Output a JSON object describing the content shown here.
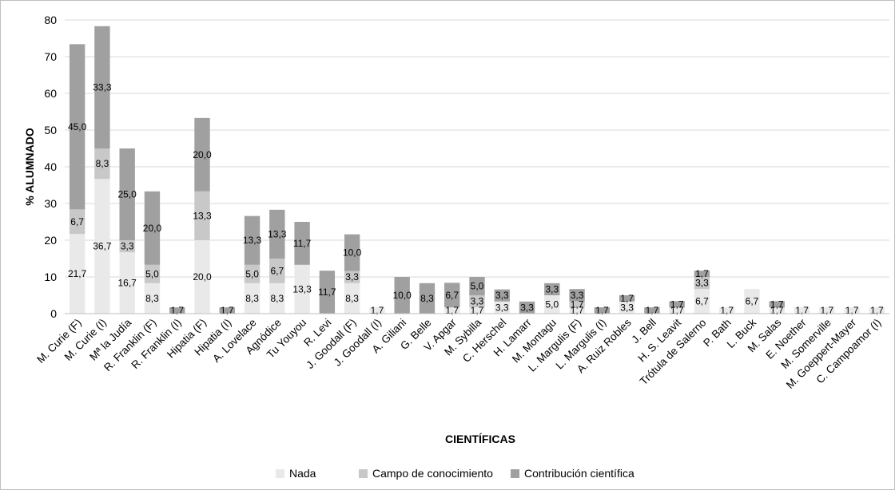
{
  "chart_data": {
    "type": "bar",
    "stacked": true,
    "xlabel": "CIENTÍFICAS",
    "ylabel": "% ALUMNADO",
    "ylim": [
      0,
      80
    ],
    "yticks": [
      0,
      10,
      20,
      30,
      40,
      50,
      60,
      70,
      80
    ],
    "grid": true,
    "legend_position": "bottom",
    "categories": [
      "M. Curie (F)",
      "M. Curie (I)",
      "Mª la Judía",
      "R. Franklin (F)",
      "R. Franklin (I)",
      "Hipatia (F)",
      "Hipatia (I)",
      "A. Lovelace",
      "Agnódice",
      "Tu Youyou",
      "R. Levi",
      "J. Goodall (F)",
      "J. Goodall (I)",
      "A. Giliani",
      "G. Belle",
      "V. Apgar",
      "M. Sybilla",
      "C. Herschel",
      "H. Lamarr",
      "M. Montagu",
      "L. Margulis (F)",
      "L. Margulis (I)",
      "A. Ruiz Robles",
      "J. Bell",
      "H. S. Leavit",
      "Trótula de Salerno",
      "P. Bath",
      "L. Buck",
      "M. Salas",
      "E. Noether",
      "M. Somerville",
      "M. Goeppert-Mayer",
      "C. Campoamor (I)"
    ],
    "series": [
      {
        "name": "Nada",
        "color": "#e9e9e9",
        "values": [
          21.7,
          36.7,
          16.7,
          8.3,
          0,
          20.0,
          0,
          8.3,
          8.3,
          13.3,
          0,
          8.3,
          1.7,
          0,
          0,
          1.7,
          1.7,
          3.3,
          0,
          5.0,
          1.7,
          0,
          3.3,
          0,
          1.7,
          6.7,
          1.7,
          6.7,
          1.7,
          1.7,
          1.7,
          1.7,
          1.7
        ],
        "labels": [
          "21,7",
          "36,7",
          "16,7",
          "8,3",
          "",
          "20,0",
          "",
          "8,3",
          "8,3",
          "13,3",
          "",
          "8,3",
          "1,7",
          "",
          "",
          "1,7",
          "1,7",
          "3,3",
          "",
          "5,0",
          "1,7",
          "",
          "3,3",
          "",
          "1,7",
          "6,7",
          "1,7",
          "6,7",
          "1,7",
          "1,7",
          "1,7",
          "1,7",
          "1,7"
        ]
      },
      {
        "name": "Campo de conocimiento",
        "color": "#c8c8c8",
        "values": [
          6.7,
          8.3,
          3.3,
          5.0,
          0,
          13.3,
          0,
          5.0,
          6.7,
          0,
          0,
          3.3,
          0,
          0,
          0,
          0,
          3.3,
          0,
          0,
          0,
          1.7,
          0,
          0,
          0,
          0,
          3.3,
          0,
          0,
          0,
          0,
          0,
          0,
          0
        ],
        "labels": [
          "6,7",
          "8,3",
          "3,3",
          "5,0",
          "",
          "13,3",
          "",
          "5,0",
          "6,7",
          "",
          "",
          "3,3",
          "",
          "",
          "",
          "",
          "3,3",
          "",
          "",
          "",
          "1,7",
          "",
          "",
          "",
          "",
          "3,3",
          "",
          "",
          "",
          "",
          "",
          "",
          ""
        ]
      },
      {
        "name": "Contribución científica",
        "color": "#a0a0a0",
        "values": [
          45.0,
          33.3,
          25.0,
          20.0,
          1.7,
          20.0,
          1.7,
          13.3,
          13.3,
          11.7,
          11.7,
          10.0,
          0,
          10.0,
          8.3,
          6.7,
          5.0,
          3.3,
          3.3,
          3.3,
          3.3,
          1.7,
          1.7,
          1.7,
          1.7,
          1.7,
          0,
          0,
          1.7,
          0,
          0,
          0,
          0
        ],
        "labels": [
          "45,0",
          "33,3",
          "25,0",
          "20,0",
          "1,7",
          "20,0",
          "1,7",
          "13,3",
          "13,3",
          "11,7",
          "11,7",
          "10,0",
          "",
          "10,0",
          "8,3",
          "6,7",
          "5,0",
          "3,3",
          "3,3",
          "3,3",
          "3,3",
          "1,7",
          "1,7",
          "1,7",
          "1,7",
          "1,7",
          "",
          "",
          "1,7",
          "",
          "",
          "",
          ""
        ]
      }
    ]
  }
}
